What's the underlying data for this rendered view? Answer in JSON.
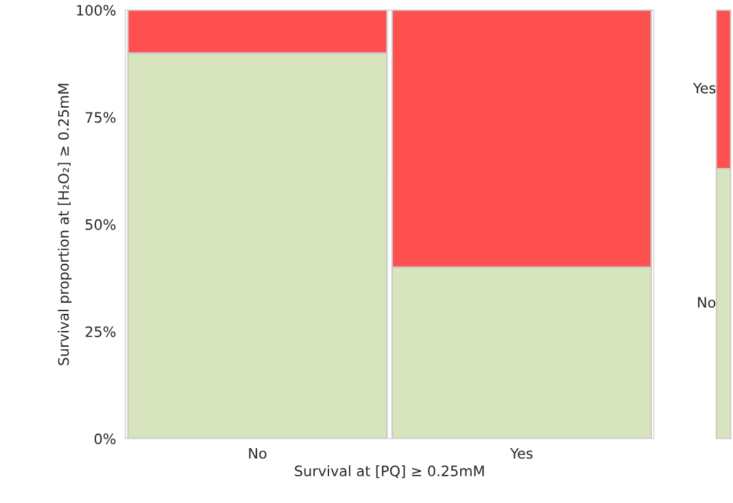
{
  "chart_data": [
    {
      "type": "bar",
      "stacked": true,
      "categories": [
        "No",
        "Yes"
      ],
      "xlabel": "Survival at [PQ] ≥ 0.25mM",
      "ylabel": "Survival proportion at [H₂O₂] ≥ 0.25mM",
      "series": [
        {
          "color": "#d7e4bd",
          "values": [
            90,
            40
          ]
        },
        {
          "color": "#ff5050",
          "values": [
            10,
            60
          ]
        }
      ],
      "ylim": [
        0,
        100
      ],
      "yticks": [
        {
          "value": 0,
          "label": "0%"
        },
        {
          "value": 25,
          "label": "25%"
        },
        {
          "value": 50,
          "label": "50%"
        },
        {
          "value": 75,
          "label": "75%"
        },
        {
          "value": 100,
          "label": "100%"
        }
      ]
    },
    {
      "type": "bar",
      "stacked": true,
      "categories": [
        null
      ],
      "series": [
        {
          "name": "No",
          "color": "#d7e4bd",
          "values": [
            63
          ]
        },
        {
          "name": "Yes",
          "color": "#ff5050",
          "values": [
            37
          ]
        }
      ],
      "ylim": [
        0,
        100
      ]
    }
  ]
}
